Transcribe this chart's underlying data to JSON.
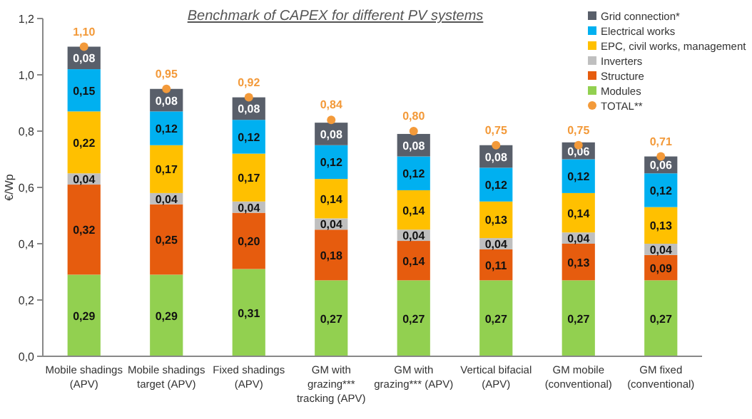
{
  "chart_data": {
    "type": "bar",
    "stacked": true,
    "title": "Benchmark of CAPEX for different PV systems",
    "ylabel": "€/Wp",
    "categories": [
      "Mobile shadings (APV)",
      "Mobile shadings target (APV)",
      "Fixed shadings (APV)",
      "GM with grazing*** tracking (APV)",
      "GM with grazing*** (APV)",
      "Vertical bifacial (APV)",
      "GM mobile (conventional)",
      "GM fixed (conventional)"
    ],
    "series": [
      {
        "name": "Modules",
        "color": "#92d050",
        "values": [
          0.29,
          0.29,
          0.31,
          0.27,
          0.27,
          0.27,
          0.27,
          0.27
        ],
        "value_labels": [
          "0,29",
          "0,29",
          "0,31",
          "0,27",
          "0,27",
          "0,27",
          "0,27",
          "0,27"
        ]
      },
      {
        "name": "Structure",
        "color": "#e65c0e",
        "values": [
          0.32,
          0.25,
          0.2,
          0.18,
          0.14,
          0.11,
          0.13,
          0.09
        ],
        "value_labels": [
          "0,32",
          "0,25",
          "0,20",
          "0,18",
          "0,14",
          "0,11",
          "0,13",
          "0,09"
        ]
      },
      {
        "name": "Inverters",
        "color": "#bfbfbf",
        "values": [
          0.04,
          0.04,
          0.04,
          0.04,
          0.04,
          0.04,
          0.04,
          0.04
        ],
        "value_labels": [
          "0,04",
          "0,04",
          "0,04",
          "0,04",
          "0,04",
          "0,04",
          "0,04",
          "0,04"
        ]
      },
      {
        "name": "EPC, civil works, management",
        "color": "#ffc000",
        "values": [
          0.22,
          0.17,
          0.17,
          0.14,
          0.14,
          0.13,
          0.14,
          0.13
        ],
        "value_labels": [
          "0,22",
          "0,17",
          "0,17",
          "0,14",
          "0,14",
          "0,13",
          "0,14",
          "0,13"
        ]
      },
      {
        "name": "Electrical works",
        "color": "#00b0f0",
        "values": [
          0.15,
          0.12,
          0.12,
          0.12,
          0.12,
          0.12,
          0.12,
          0.12
        ],
        "value_labels": [
          "0,15",
          "0,12",
          "0,12",
          "0,12",
          "0,12",
          "0,12",
          "0,12",
          "0,12"
        ]
      },
      {
        "name": "Grid connection*",
        "color": "#595f6a",
        "values": [
          0.08,
          0.08,
          0.08,
          0.08,
          0.08,
          0.08,
          0.06,
          0.06
        ],
        "value_labels": [
          "0,08",
          "0,08",
          "0,08",
          "0,08",
          "0,08",
          "0,08",
          "0,06",
          "0,06"
        ]
      },
      {
        "name": "TOTAL**",
        "type": "scatter",
        "color": "#f39a3a",
        "values": [
          1.1,
          0.95,
          0.92,
          0.84,
          0.8,
          0.75,
          0.75,
          0.71
        ],
        "value_labels": [
          "1,10",
          "0,95",
          "0,92",
          "0,84",
          "0,80",
          "0,75",
          "0,75",
          "0,71"
        ]
      }
    ],
    "ylim": [
      0,
      1.2
    ],
    "yticks": [
      {
        "value": 0,
        "label": "0,0"
      },
      {
        "value": 0.2,
        "label": "0,2"
      },
      {
        "value": 0.4,
        "label": "0,4"
      },
      {
        "value": 0.6,
        "label": "0,6"
      },
      {
        "value": 0.8,
        "label": "0,8"
      },
      {
        "value": 1.0,
        "label": "1,0"
      },
      {
        "value": 1.2,
        "label": "1,2"
      }
    ],
    "marker": "circle",
    "legend": "top right",
    "grid": false
  }
}
